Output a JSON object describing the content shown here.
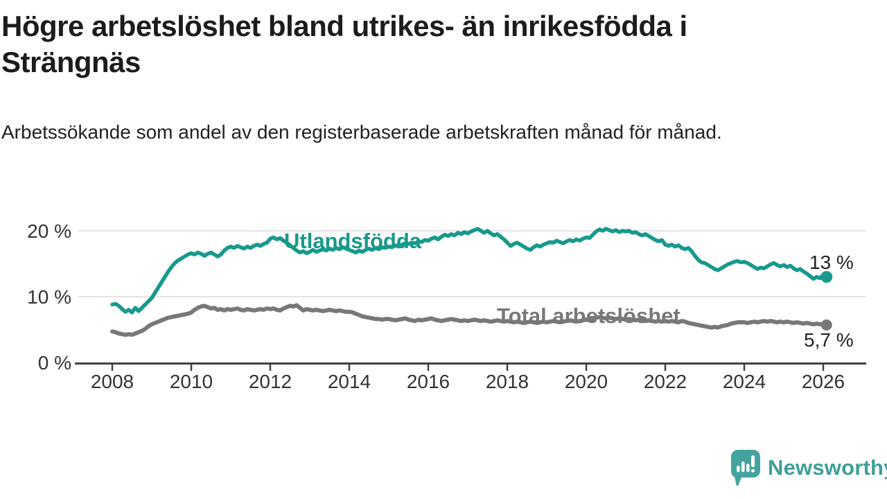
{
  "title": "Högre arbetslöshet bland utrikes- än inrikesfödda i Strängnäs",
  "subtitle": "Arbetssökande som andel av den registerbaserade arbetskraften månad för månad.",
  "branding": {
    "logo_text": "Newsworthy",
    "logo_icon": "speech-bubble-bar-chart"
  },
  "colors": {
    "series_utlandsfodda": "#17998c",
    "series_total": "#787878",
    "grid": "#dcdcdc",
    "axis": "#404040",
    "axis_text": "#333333",
    "value_label_text": "#222222",
    "logo_teal": "#45a39e"
  },
  "chart_data": {
    "type": "line",
    "title": "Högre arbetslöshet bland utrikes- än inrikesfödda i Strängnäs",
    "subtitle": "Arbetssökande som andel av den registerbaserade arbetskraften månad för månad.",
    "x_unit": "month",
    "x_start": {
      "year": 2008,
      "month": 1
    },
    "x_end": {
      "year": 2026,
      "month": 2
    },
    "points_per_year": 12,
    "x_tick_labels": [
      "2008",
      "2010",
      "2012",
      "2014",
      "2016",
      "2018",
      "2020",
      "2022",
      "2024",
      "2026"
    ],
    "y_ticks": [
      0,
      10,
      20
    ],
    "y_tick_labels": [
      "0 %",
      "10 %",
      "20 %"
    ],
    "ylim": [
      0,
      21.5
    ],
    "grid": "horizontal",
    "legend_position": "inline-labels",
    "series": [
      {
        "name": "Utlandsfödda",
        "color": "#17998c",
        "end_label": "13 %",
        "values": [
          8.8,
          8.9,
          8.6,
          8.1,
          7.7,
          8.0,
          7.6,
          8.3,
          7.8,
          8.3,
          8.8,
          9.3,
          9.8,
          10.6,
          11.4,
          12.2,
          13.0,
          13.8,
          14.5,
          15.1,
          15.5,
          15.8,
          16.1,
          16.4,
          16.6,
          16.4,
          16.7,
          16.5,
          16.2,
          16.5,
          16.7,
          16.4,
          16.1,
          16.4,
          17.0,
          17.4,
          17.6,
          17.4,
          17.7,
          17.5,
          17.3,
          17.6,
          17.4,
          17.7,
          17.9,
          17.7,
          18.0,
          18.2,
          18.8,
          19.0,
          18.7,
          18.9,
          18.5,
          18.2,
          17.8,
          17.4,
          17.0,
          16.7,
          16.9,
          16.6,
          16.8,
          17.1,
          16.8,
          17.0,
          17.2,
          17.0,
          17.3,
          17.1,
          17.4,
          17.2,
          17.5,
          17.3,
          17.1,
          16.9,
          16.7,
          17.0,
          16.8,
          17.1,
          17.3,
          17.1,
          17.4,
          17.2,
          17.5,
          17.4,
          17.6,
          17.5,
          17.8,
          17.6,
          17.9,
          18.1,
          18.0,
          18.2,
          18.1,
          18.4,
          18.3,
          18.6,
          18.5,
          18.8,
          19.0,
          18.7,
          19.1,
          19.4,
          19.2,
          19.5,
          19.3,
          19.7,
          19.5,
          19.8,
          19.6,
          19.9,
          20.1,
          20.3,
          20.0,
          19.7,
          20.0,
          19.6,
          19.3,
          19.5,
          19.1,
          18.7,
          18.2,
          17.7,
          18.0,
          18.2,
          17.9,
          17.6,
          17.3,
          17.1,
          17.5,
          17.8,
          17.6,
          17.9,
          18.1,
          18.3,
          18.2,
          18.5,
          18.3,
          18.1,
          18.4,
          18.6,
          18.4,
          18.7,
          18.5,
          18.8,
          19.0,
          18.9,
          19.4,
          19.9,
          20.2,
          20.0,
          20.3,
          20.1,
          19.9,
          20.1,
          19.8,
          20.0,
          19.9,
          20.0,
          19.7,
          19.8,
          19.5,
          19.3,
          19.5,
          19.2,
          18.9,
          18.6,
          18.4,
          18.6,
          17.9,
          17.7,
          17.9,
          17.6,
          17.8,
          17.4,
          17.2,
          17.4,
          16.9,
          16.2,
          15.6,
          15.2,
          15.1,
          14.8,
          14.5,
          14.2,
          14.0,
          14.3,
          14.6,
          14.9,
          15.1,
          15.3,
          15.4,
          15.2,
          15.3,
          15.1,
          14.8,
          14.5,
          14.2,
          14.4,
          14.3,
          14.6,
          14.9,
          15.1,
          14.8,
          14.6,
          14.8,
          14.5,
          14.7,
          14.3,
          14.0,
          14.2,
          13.8,
          13.5,
          13.1,
          12.7,
          13.0,
          12.8,
          13.3,
          13.0
        ]
      },
      {
        "name": "Total arbetslöshet",
        "color": "#787878",
        "end_label": "5,7 %",
        "values": [
          4.7,
          4.6,
          4.4,
          4.3,
          4.2,
          4.3,
          4.2,
          4.4,
          4.6,
          4.8,
          5.1,
          5.5,
          5.8,
          6.0,
          6.2,
          6.4,
          6.6,
          6.8,
          6.9,
          7.0,
          7.1,
          7.2,
          7.3,
          7.4,
          7.6,
          8.0,
          8.3,
          8.5,
          8.6,
          8.4,
          8.2,
          8.3,
          8.0,
          8.1,
          7.9,
          8.1,
          8.0,
          8.1,
          8.2,
          8.0,
          7.9,
          8.1,
          8.0,
          7.9,
          8.0,
          8.1,
          8.0,
          8.2,
          8.1,
          8.2,
          8.0,
          7.9,
          8.2,
          8.4,
          8.6,
          8.5,
          8.7,
          8.3,
          7.9,
          8.1,
          8.0,
          7.9,
          8.0,
          7.9,
          7.8,
          7.9,
          8.0,
          7.9,
          7.8,
          7.9,
          7.8,
          7.7,
          7.7,
          7.6,
          7.4,
          7.2,
          7.0,
          6.9,
          6.8,
          6.7,
          6.6,
          6.6,
          6.5,
          6.6,
          6.6,
          6.5,
          6.4,
          6.5,
          6.6,
          6.7,
          6.5,
          6.4,
          6.3,
          6.5,
          6.4,
          6.5,
          6.6,
          6.7,
          6.5,
          6.4,
          6.3,
          6.4,
          6.5,
          6.6,
          6.5,
          6.4,
          6.3,
          6.4,
          6.3,
          6.4,
          6.5,
          6.4,
          6.3,
          6.4,
          6.3,
          6.2,
          6.3,
          6.4,
          6.3,
          6.2,
          6.3,
          6.2,
          6.1,
          6.2,
          6.1,
          6.0,
          6.1,
          6.2,
          6.1,
          6.0,
          6.1,
          6.2,
          6.1,
          6.2,
          6.3,
          6.2,
          6.1,
          6.2,
          6.3,
          6.4,
          6.3,
          6.2,
          6.3,
          6.4,
          6.5,
          6.4,
          6.6,
          6.8,
          6.9,
          6.8,
          6.7,
          6.8,
          6.7,
          6.6,
          6.7,
          6.6,
          6.5,
          6.6,
          6.5,
          6.4,
          6.5,
          6.4,
          6.3,
          6.4,
          6.3,
          6.2,
          6.3,
          6.2,
          6.3,
          6.2,
          6.3,
          6.2,
          6.1,
          6.3,
          6.2,
          6.0,
          5.9,
          5.8,
          5.7,
          5.6,
          5.5,
          5.4,
          5.3,
          5.4,
          5.3,
          5.5,
          5.6,
          5.7,
          5.9,
          6.0,
          6.1,
          6.1,
          6.1,
          6.0,
          6.1,
          6.2,
          6.1,
          6.2,
          6.3,
          6.2,
          6.3,
          6.2,
          6.1,
          6.2,
          6.1,
          6.2,
          6.1,
          6.0,
          6.1,
          6.0,
          5.9,
          6.0,
          5.9,
          5.8,
          5.9,
          5.8,
          5.8,
          5.7
        ]
      }
    ]
  }
}
